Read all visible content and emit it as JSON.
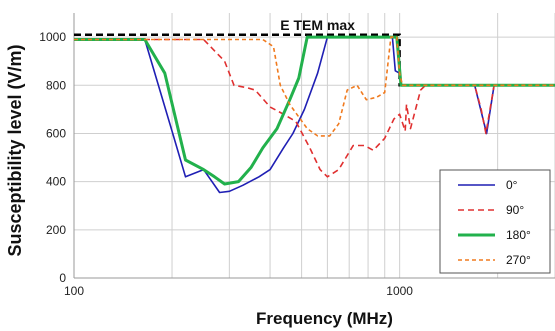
{
  "chart_data": {
    "type": "line",
    "xlabel": "Frequency (MHz)",
    "ylabel": "Susceptibility level (V/m)",
    "x_scale": "log",
    "xlim": [
      100,
      3000
    ],
    "ylim": [
      0,
      1100
    ],
    "x_ticks": [
      {
        "value": 100,
        "label": "100"
      },
      {
        "value": 1000,
        "label": "1000"
      }
    ],
    "y_ticks": [
      {
        "value": 0,
        "label": "0"
      },
      {
        "value": 200,
        "label": "200"
      },
      {
        "value": 400,
        "label": "400"
      },
      {
        "value": 600,
        "label": "600"
      },
      {
        "value": 800,
        "label": "800"
      },
      {
        "value": 1000,
        "label": "1000"
      }
    ],
    "grid": true,
    "legend_position": "bottom-right",
    "annotations": [
      {
        "text": "E TEM max",
        "x": 560,
        "y": 1030
      }
    ],
    "reference_line": {
      "color": "#000000",
      "points": [
        [
          100,
          1010
        ],
        [
          1000,
          1010
        ],
        [
          1000,
          800
        ],
        [
          3000,
          800
        ]
      ]
    },
    "series": [
      {
        "name": "0°",
        "color": "#1f1fb4",
        "dash": "solid",
        "points": [
          [
            100,
            990
          ],
          [
            165,
            990
          ],
          [
            200,
            610
          ],
          [
            220,
            420
          ],
          [
            250,
            450
          ],
          [
            280,
            355
          ],
          [
            300,
            360
          ],
          [
            330,
            385
          ],
          [
            370,
            420
          ],
          [
            400,
            450
          ],
          [
            440,
            540
          ],
          [
            470,
            600
          ],
          [
            510,
            700
          ],
          [
            560,
            850
          ],
          [
            600,
            1000
          ],
          [
            950,
            1000
          ],
          [
            970,
            860
          ],
          [
            1000,
            850
          ],
          [
            1010,
            800
          ],
          [
            1700,
            800
          ],
          [
            1850,
            600
          ],
          [
            1950,
            800
          ],
          [
            3000,
            800
          ]
        ]
      },
      {
        "name": "90°",
        "color": "#e03030",
        "dash": "dashed",
        "points": [
          [
            100,
            990
          ],
          [
            250,
            990
          ],
          [
            290,
            900
          ],
          [
            310,
            800
          ],
          [
            340,
            790
          ],
          [
            360,
            780
          ],
          [
            400,
            710
          ],
          [
            440,
            680
          ],
          [
            480,
            650
          ],
          [
            530,
            540
          ],
          [
            570,
            450
          ],
          [
            600,
            420
          ],
          [
            650,
            450
          ],
          [
            720,
            550
          ],
          [
            780,
            550
          ],
          [
            830,
            530
          ],
          [
            900,
            580
          ],
          [
            960,
            660
          ],
          [
            1000,
            680
          ],
          [
            1040,
            610
          ],
          [
            1050,
            720
          ],
          [
            1080,
            620
          ],
          [
            1160,
            780
          ],
          [
            1200,
            800
          ],
          [
            1700,
            800
          ],
          [
            1780,
            700
          ],
          [
            1840,
            600
          ],
          [
            1950,
            800
          ],
          [
            3000,
            800
          ]
        ]
      },
      {
        "name": "180°",
        "color": "#22b14c",
        "dash": "solid",
        "points": [
          [
            100,
            990
          ],
          [
            165,
            990
          ],
          [
            190,
            850
          ],
          [
            220,
            490
          ],
          [
            250,
            450
          ],
          [
            270,
            420
          ],
          [
            290,
            390
          ],
          [
            320,
            400
          ],
          [
            350,
            460
          ],
          [
            380,
            540
          ],
          [
            420,
            620
          ],
          [
            460,
            740
          ],
          [
            490,
            830
          ],
          [
            520,
            1000
          ],
          [
            980,
            1000
          ],
          [
            1010,
            800
          ],
          [
            3000,
            800
          ]
        ]
      },
      {
        "name": "270°",
        "color": "#f07a1e",
        "dash": "dashed",
        "points": [
          [
            100,
            990
          ],
          [
            380,
            990
          ],
          [
            410,
            960
          ],
          [
            430,
            800
          ],
          [
            460,
            720
          ],
          [
            520,
            620
          ],
          [
            560,
            590
          ],
          [
            610,
            590
          ],
          [
            650,
            640
          ],
          [
            690,
            780
          ],
          [
            740,
            800
          ],
          [
            790,
            740
          ],
          [
            850,
            750
          ],
          [
            900,
            770
          ],
          [
            940,
            1000
          ],
          [
            980,
            1000
          ],
          [
            1000,
            850
          ],
          [
            1020,
            800
          ],
          [
            3000,
            800
          ]
        ]
      }
    ]
  }
}
